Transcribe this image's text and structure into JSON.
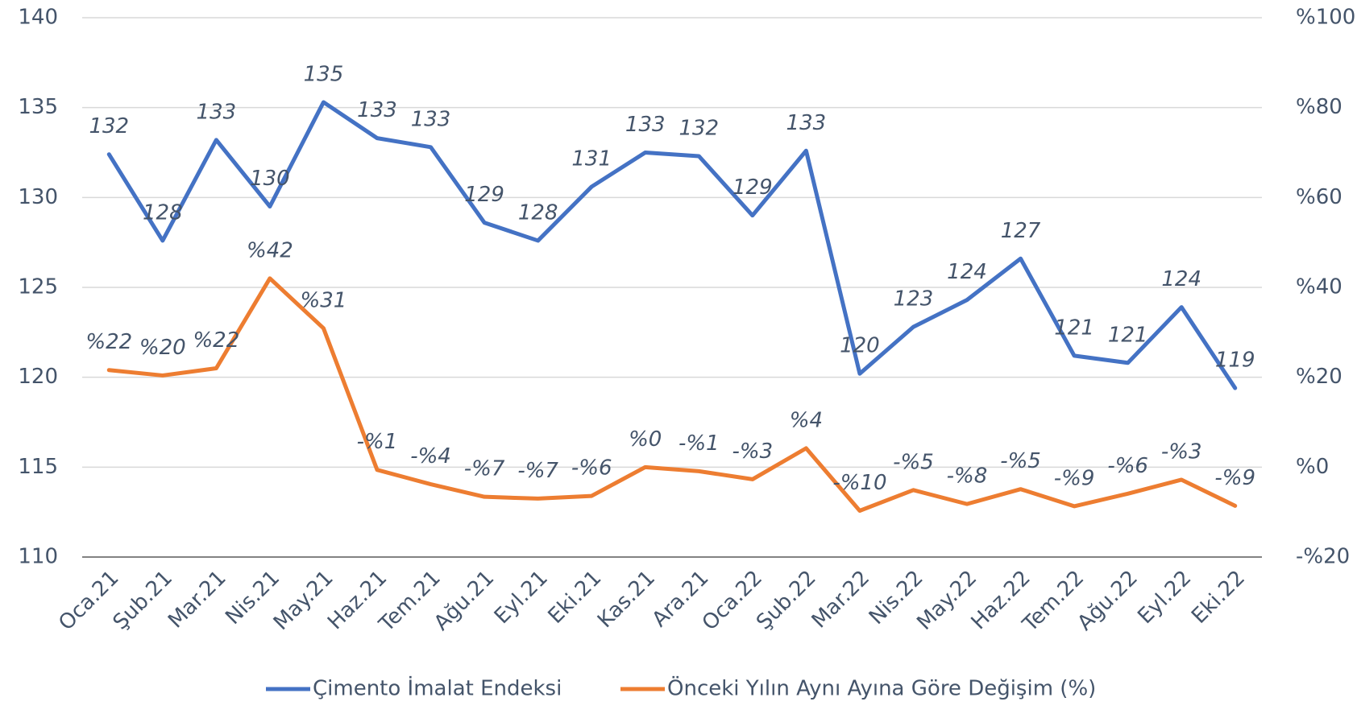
{
  "chart_data": {
    "type": "line",
    "categories": [
      "Oca.21",
      "Şub.21",
      "Mar.21",
      "Nis.21",
      "May.21",
      "Haz.21",
      "Tem.21",
      "Ağu.21",
      "Eyl.21",
      "Eki.21",
      "Kas.21",
      "Ara.21",
      "Oca.22",
      "Şub.22",
      "Mar.22",
      "Nis.22",
      "May.22",
      "Haz.22",
      "Tem.22",
      "Ağu.22",
      "Eyl.22",
      "Eki.22"
    ],
    "series": [
      {
        "name": "Çimento İmalat Endeksi",
        "color": "#4472c4",
        "axis": "y",
        "values": [
          132.4,
          127.6,
          133.2,
          129.5,
          135.3,
          133.3,
          132.8,
          128.6,
          127.6,
          130.6,
          132.5,
          132.3,
          129.0,
          132.6,
          120.2,
          122.8,
          124.3,
          126.6,
          121.2,
          120.8,
          123.9,
          119.4
        ]
      },
      {
        "name": "Önceki Yılın Aynı Ayına Göre Değişim (%)",
        "color": "#ed7d31",
        "axis": "y2",
        "values": [
          21.6,
          20.4,
          22.0,
          42.0,
          30.9,
          -0.6,
          -3.8,
          -6.6,
          -7.0,
          -6.4,
          0,
          -0.9,
          -2.7,
          4.2,
          -9.7,
          -5.1,
          -8.2,
          -4.9,
          -8.7,
          -5.9,
          -2.8,
          -8.6
        ],
        "value_labels": [
          "%22",
          "%20",
          "%22",
          "%42",
          "%31",
          "-%1",
          "-%4",
          "-%7",
          "-%7",
          "-%6",
          "%0",
          "-%1",
          "-%3",
          "%4",
          "-%10",
          "-%5",
          "-%8",
          "-%5",
          "-%9",
          "-%6",
          "-%3",
          "-%9"
        ]
      }
    ],
    "ylim": [
      110,
      140
    ],
    "yticks": [
      110,
      115,
      120,
      125,
      130,
      135,
      140
    ],
    "y2lim": [
      -20,
      100
    ],
    "y2ticks": [
      {
        "value": -20,
        "label": "-%20"
      },
      {
        "value": 0,
        "label": "%0"
      },
      {
        "value": 20,
        "label": "%20"
      },
      {
        "value": 40,
        "label": "%40"
      },
      {
        "value": 60,
        "label": "%60"
      },
      {
        "value": 80,
        "label": "%80"
      },
      {
        "value": 100,
        "label": "%100"
      }
    ],
    "grid": true
  }
}
